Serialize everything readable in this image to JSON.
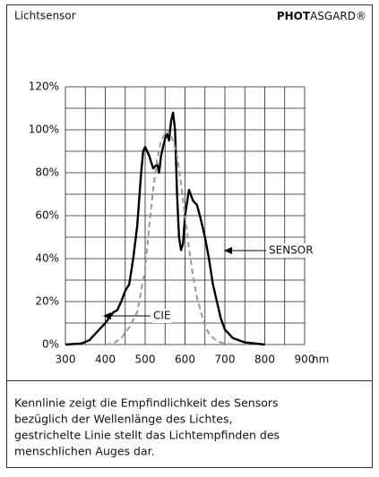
{
  "header": {
    "title": "Lichtsensor",
    "brand_bold": "PHOT",
    "brand_rest": "ASGARD®"
  },
  "chart_data": {
    "type": "line",
    "x_label": "nm",
    "xlim": [
      300,
      900
    ],
    "xticks": [
      300,
      400,
      500,
      600,
      700,
      800,
      900
    ],
    "xgrid": [
      300,
      350,
      400,
      450,
      500,
      550,
      600,
      650,
      700,
      750,
      800,
      850,
      900
    ],
    "ylim": [
      0,
      120
    ],
    "yticks": [
      {
        "value": 0,
        "label": "0%"
      },
      {
        "value": 20,
        "label": "20%"
      },
      {
        "value": 40,
        "label": "40%"
      },
      {
        "value": 60,
        "label": "60%"
      },
      {
        "value": 80,
        "label": "80%"
      },
      {
        "value": 100,
        "label": "100%"
      },
      {
        "value": 120,
        "label": "120%"
      }
    ],
    "ygrid": [
      0,
      10,
      20,
      30,
      40,
      50,
      60,
      70,
      80,
      90,
      100,
      110,
      120
    ],
    "grid": true,
    "series": [
      {
        "name": "SENSOR",
        "color": "#000000",
        "dashed": false,
        "x": [
          300,
          340,
          360,
          380,
          400,
          420,
          430,
          440,
          450,
          460,
          470,
          480,
          490,
          495,
          500,
          510,
          520,
          530,
          535,
          540,
          550,
          555,
          560,
          565,
          570,
          575,
          580,
          585,
          590,
          595,
          600,
          610,
          620,
          630,
          640,
          650,
          660,
          670,
          680,
          690,
          700,
          720,
          750,
          800
        ],
        "values": [
          0,
          0.5,
          2,
          6,
          10,
          15,
          16,
          20,
          25,
          28,
          40,
          55,
          80,
          90,
          92,
          88,
          82,
          84,
          80,
          88,
          96,
          98,
          95,
          104,
          108,
          100,
          70,
          50,
          44,
          47,
          60,
          72,
          67,
          65,
          58,
          50,
          40,
          28,
          20,
          12,
          7,
          3,
          1,
          0
        ]
      },
      {
        "name": "CIE",
        "color": "#999999",
        "dashed": true,
        "x": [
          400,
          420,
          440,
          460,
          480,
          500,
          510,
          520,
          530,
          540,
          555,
          570,
          580,
          590,
          600,
          610,
          620,
          630,
          640,
          650,
          660,
          680,
          700,
          720
        ],
        "values": [
          0,
          0.5,
          3,
          8,
          15,
          35,
          55,
          72,
          86,
          95,
          100,
          95,
          88,
          75,
          60,
          45,
          32,
          22,
          15,
          9,
          5,
          1.5,
          0.5,
          0
        ]
      }
    ]
  },
  "footer": {
    "lines": [
      "Kennlinie zeigt die Empfindlichkeit des Sensors",
      "bezüglich der Wellenlänge des Lichtes,",
      "gestrichelte Linie stellt das Lichtempfinden des",
      "menschlichen Auges dar."
    ]
  }
}
